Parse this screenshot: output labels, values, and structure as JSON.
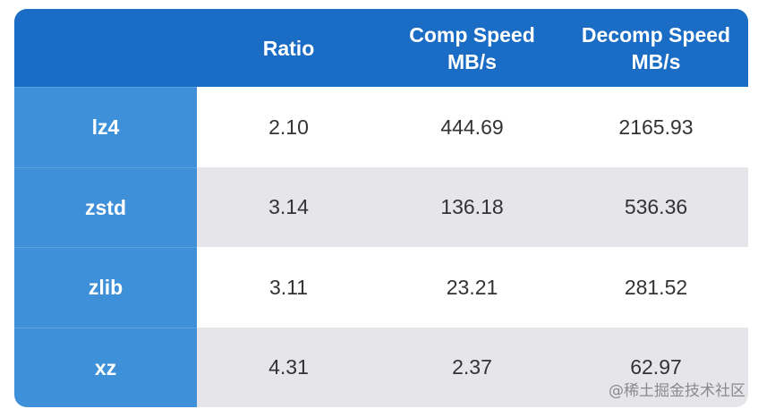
{
  "table": {
    "headers": [
      [
        "Ratio"
      ],
      [
        "Comp Speed",
        "MB/s"
      ],
      [
        "Decomp Speed",
        "MB/s"
      ]
    ],
    "rows": [
      [
        "lz4",
        "2.10",
        "444.69",
        "2165.93"
      ],
      [
        "zstd",
        "3.14",
        "136.18",
        "536.36"
      ],
      [
        "zlib",
        "3.11",
        "23.21",
        "281.52"
      ],
      [
        "xz",
        "4.31",
        "2.37",
        "62.97"
      ]
    ]
  },
  "watermark": "@稀土掘金技术社区"
}
